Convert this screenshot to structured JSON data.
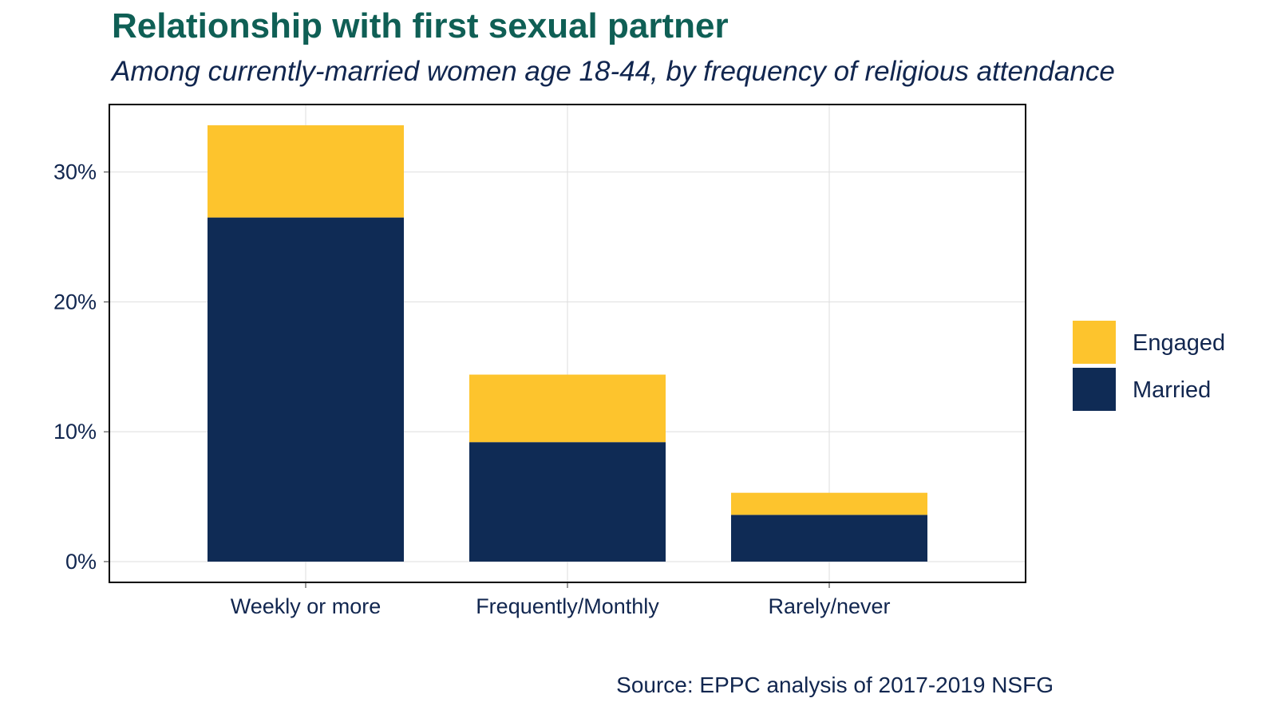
{
  "chart_data": {
    "type": "bar",
    "stacked": true,
    "title": "Relationship with first sexual partner",
    "subtitle": "Among currently-married women age 18-44, by frequency of religious attendance",
    "source": "Source: EPPC analysis of 2017-2019 NSFG",
    "categories": [
      "Weekly or more",
      "Frequently/Monthly",
      "Rarely/never"
    ],
    "series": [
      {
        "name": "Married",
        "color": "#0f2b55",
        "values": [
          26.5,
          9.2,
          3.6
        ]
      },
      {
        "name": "Engaged",
        "color": "#fdc42d",
        "values": [
          7.1,
          5.2,
          1.7
        ]
      }
    ],
    "yticks": [
      0,
      10,
      20,
      30
    ],
    "ytick_labels": [
      "0%",
      "10%",
      "20%",
      "30%"
    ],
    "ylim": [
      -1.6,
      35.2
    ],
    "legend": [
      "Engaged",
      "Married"
    ],
    "legend_position": "right",
    "grid": true
  }
}
